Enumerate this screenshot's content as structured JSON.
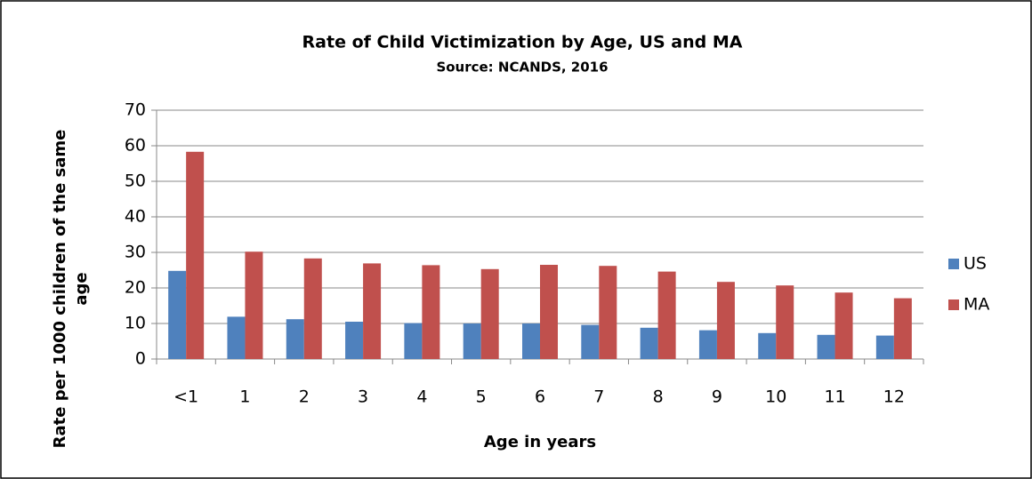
{
  "chart_data": {
    "type": "bar",
    "title": "Rate of Child Victimization by Age, US and MA",
    "subtitle": "Source: NCANDS, 2016",
    "x_label": "Age in years",
    "y_label": [
      "Rate per 1000 children of the same",
      "age"
    ],
    "categories": [
      "<1",
      "1",
      "2",
      "3",
      "4",
      "5",
      "6",
      "7",
      "8",
      "9",
      "10",
      "11",
      "12"
    ],
    "series": [
      {
        "name": "US",
        "color": "#4f81bd",
        "values": [
          24.8,
          11.9,
          11.2,
          10.5,
          10.1,
          10.0,
          10.0,
          9.6,
          8.8,
          8.1,
          7.3,
          6.8,
          6.6
        ]
      },
      {
        "name": "MA",
        "color": "#c0504d",
        "values": [
          58.3,
          30.2,
          28.3,
          26.9,
          26.4,
          25.3,
          26.5,
          26.2,
          24.6,
          21.7,
          20.7,
          18.7,
          17.1
        ]
      }
    ],
    "ylim": [
      0,
      70
    ],
    "yticks": [
      0,
      10,
      20,
      30,
      40,
      50,
      60,
      70
    ],
    "grid": true,
    "legend": "right"
  }
}
